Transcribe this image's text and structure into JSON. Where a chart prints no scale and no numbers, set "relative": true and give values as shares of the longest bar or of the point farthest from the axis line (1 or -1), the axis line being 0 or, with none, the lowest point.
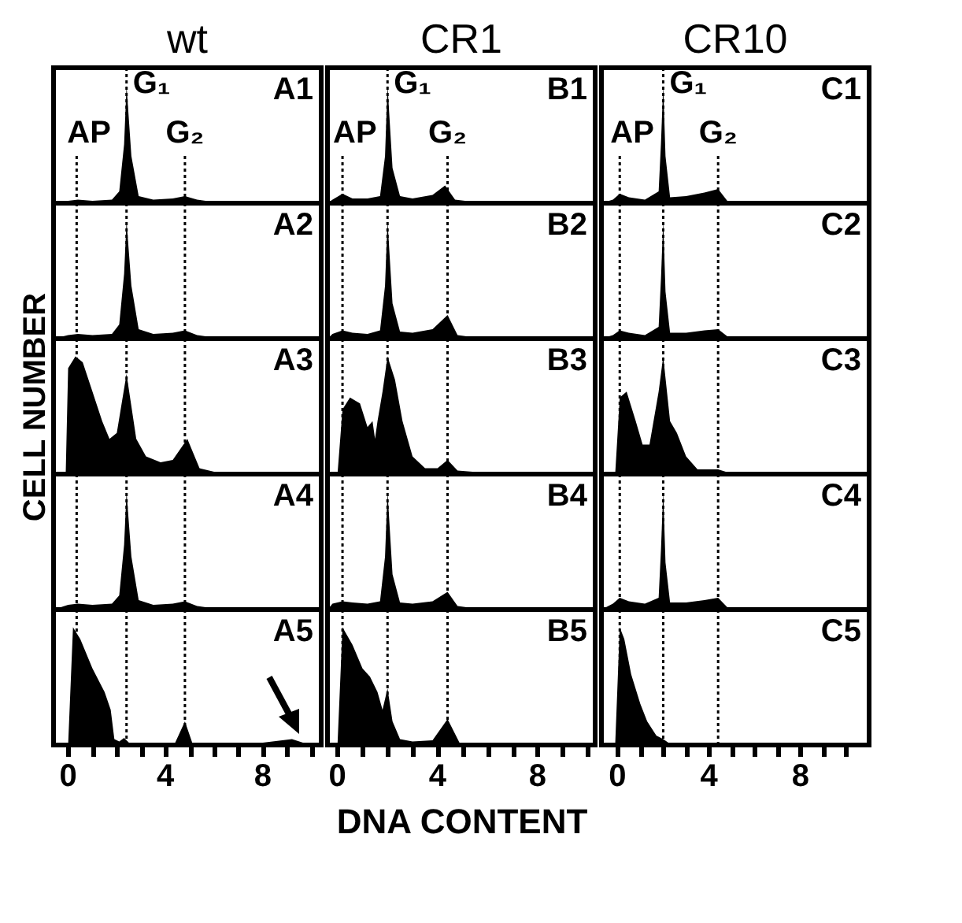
{
  "chart_data": [
    {
      "type": "area",
      "title": "wt",
      "relative": true,
      "color": "#000000",
      "xlim": [
        -0.6,
        10.4
      ],
      "tick_labels": false,
      "annotations": [
        "A1"
      ],
      "line_style": "dotted",
      "x": [
        -0.6,
        0,
        0.4,
        1,
        1.8,
        2.1,
        2.3,
        2.4,
        2.6,
        2.9,
        3.5,
        4.3,
        4.8,
        5.3,
        6,
        8,
        10,
        10.4
      ],
      "values": [
        0,
        0.02,
        0.03,
        0.02,
        0.03,
        0.1,
        0.5,
        1,
        0.4,
        0.06,
        0.03,
        0.04,
        0.06,
        0.03,
        0.01,
        0.01,
        0.01,
        0
      ],
      "ref_lines": [
        {
          "axis": "x",
          "value": 0.35,
          "label": "AP"
        },
        {
          "axis": "x",
          "value": 2.4,
          "label": "G₁"
        },
        {
          "axis": "x",
          "value": 4.8,
          "label": "G₂"
        }
      ]
    },
    {
      "type": "area",
      "title": "CR1",
      "relative": true,
      "color": "#000000",
      "xlim": [
        -0.4,
        10.3
      ],
      "tick_labels": false,
      "annotations": [
        "B1"
      ],
      "line_style": "dotted",
      "x": [
        -0.4,
        -0.2,
        0.2,
        0.6,
        1.2,
        1.7,
        1.9,
        2.0,
        2.2,
        2.5,
        3,
        3.8,
        4.3,
        4.7,
        5.5,
        7,
        10.3
      ],
      "values": [
        0,
        0.03,
        0.08,
        0.04,
        0.04,
        0.06,
        0.4,
        1,
        0.3,
        0.06,
        0.04,
        0.07,
        0.15,
        0.03,
        0.01,
        0.01,
        0
      ],
      "ref_lines": [
        {
          "axis": "x",
          "value": 0.2,
          "label": "AP"
        },
        {
          "axis": "x",
          "value": 2.0,
          "label": "G₁"
        },
        {
          "axis": "x",
          "value": 4.4,
          "label": "G₂"
        }
      ]
    },
    {
      "type": "area",
      "title": "CR10",
      "relative": true,
      "color": "#000000",
      "xlim": [
        -0.7,
        11
      ],
      "tick_labels": false,
      "annotations": [
        "C1"
      ],
      "line_style": "dotted",
      "x": [
        -0.7,
        -0.2,
        0.1,
        0.5,
        1.2,
        1.8,
        1.9,
        2.0,
        2.1,
        2.3,
        3,
        3.8,
        4.4,
        4.8,
        6,
        11
      ],
      "values": [
        0,
        0.03,
        0.08,
        0.05,
        0.03,
        0.1,
        0.5,
        1,
        0.4,
        0.05,
        0.06,
        0.09,
        0.12,
        0.02,
        0.01,
        0
      ],
      "ref_lines": [
        {
          "axis": "x",
          "value": 0.1,
          "label": "AP"
        },
        {
          "axis": "x",
          "value": 2.0,
          "label": "G₁"
        },
        {
          "axis": "x",
          "value": 4.4,
          "label": "G₂"
        }
      ]
    },
    {
      "type": "area",
      "relative": true,
      "color": "#000000",
      "xlim": [
        -0.6,
        10.4
      ],
      "tick_labels": false,
      "annotations": [
        "A2"
      ],
      "line_style": "dotted",
      "x": [
        -0.6,
        0,
        0.4,
        1,
        1.8,
        2.1,
        2.3,
        2.4,
        2.6,
        2.9,
        3.5,
        4.3,
        4.8,
        5.3,
        6,
        8,
        10,
        10.4
      ],
      "values": [
        0,
        0.03,
        0.04,
        0.03,
        0.04,
        0.12,
        0.55,
        1,
        0.45,
        0.08,
        0.04,
        0.05,
        0.07,
        0.03,
        0.01,
        0.01,
        0.01,
        0
      ],
      "ref_lines": [
        {
          "axis": "x",
          "value": 0.35
        },
        {
          "axis": "x",
          "value": 2.4
        },
        {
          "axis": "x",
          "value": 4.8
        }
      ]
    },
    {
      "type": "area",
      "relative": true,
      "color": "#000000",
      "xlim": [
        -0.4,
        10.3
      ],
      "tick_labels": false,
      "annotations": [
        "B2"
      ],
      "line_style": "dotted",
      "x": [
        -0.4,
        -0.2,
        0.2,
        0.6,
        1.2,
        1.7,
        1.9,
        2.0,
        2.2,
        2.5,
        3,
        3.8,
        4.4,
        4.8,
        5.5,
        7,
        10.3
      ],
      "values": [
        0,
        0.04,
        0.07,
        0.05,
        0.04,
        0.07,
        0.45,
        1,
        0.3,
        0.06,
        0.05,
        0.08,
        0.2,
        0.03,
        0.01,
        0.01,
        0
      ],
      "ref_lines": [
        {
          "axis": "x",
          "value": 0.2
        },
        {
          "axis": "x",
          "value": 2.0
        },
        {
          "axis": "x",
          "value": 4.4
        }
      ]
    },
    {
      "type": "area",
      "relative": true,
      "color": "#000000",
      "xlim": [
        -0.7,
        11
      ],
      "tick_labels": false,
      "annotations": [
        "C2"
      ],
      "line_style": "dotted",
      "x": [
        -0.7,
        -0.2,
        0.1,
        0.5,
        1.2,
        1.8,
        1.9,
        2.0,
        2.1,
        2.3,
        3,
        3.8,
        4.4,
        4.8,
        6,
        11
      ],
      "values": [
        0,
        0.03,
        0.07,
        0.05,
        0.03,
        0.1,
        0.5,
        1,
        0.4,
        0.05,
        0.05,
        0.07,
        0.08,
        0.02,
        0.01,
        0
      ],
      "ref_lines": [
        {
          "axis": "x",
          "value": 0.1
        },
        {
          "axis": "x",
          "value": 2.0
        },
        {
          "axis": "x",
          "value": 4.4
        }
      ]
    },
    {
      "type": "area",
      "relative": true,
      "color": "#000000",
      "xlim": [
        -0.6,
        10.4
      ],
      "tick_labels": false,
      "annotations": [
        "A3"
      ],
      "ylabel": "CELL NUMBER",
      "line_style": "dotted",
      "x": [
        -0.6,
        -0.1,
        0,
        0.3,
        0.6,
        1,
        1.4,
        1.7,
        2.0,
        2.4,
        2.8,
        3.2,
        3.8,
        4.3,
        4.9,
        5.4,
        6,
        8,
        10,
        10.4
      ],
      "values": [
        0,
        0,
        0.9,
        1,
        0.95,
        0.7,
        0.45,
        0.3,
        0.35,
        0.85,
        0.3,
        0.15,
        0.1,
        0.12,
        0.3,
        0.05,
        0.02,
        0.01,
        0.01,
        0
      ],
      "ref_lines": [
        {
          "axis": "x",
          "value": 0.35
        },
        {
          "axis": "x",
          "value": 2.4
        },
        {
          "axis": "x",
          "value": 4.8
        }
      ]
    },
    {
      "type": "area",
      "relative": true,
      "color": "#000000",
      "xlim": [
        -0.4,
        10.3
      ],
      "tick_labels": false,
      "annotations": [
        "B3"
      ],
      "line_style": "dotted",
      "x": [
        -0.4,
        0,
        0.2,
        0.5,
        0.9,
        1.2,
        1.4,
        1.5,
        1.6,
        1.8,
        2.0,
        2.3,
        2.6,
        3.0,
        3.5,
        4.0,
        4.4,
        4.8,
        6,
        10.3
      ],
      "values": [
        0,
        0,
        0.55,
        0.65,
        0.6,
        0.4,
        0.45,
        0.3,
        0.45,
        0.7,
        1,
        0.8,
        0.45,
        0.15,
        0.05,
        0.05,
        0.12,
        0.03,
        0.01,
        0
      ],
      "ref_lines": [
        {
          "axis": "x",
          "value": 0.2
        },
        {
          "axis": "x",
          "value": 2.0
        },
        {
          "axis": "x",
          "value": 4.4
        }
      ]
    },
    {
      "type": "area",
      "relative": true,
      "color": "#000000",
      "xlim": [
        -0.7,
        11
      ],
      "tick_labels": false,
      "annotations": [
        "C3"
      ],
      "line_style": "dotted",
      "x": [
        -0.7,
        -0.1,
        0.1,
        0.4,
        0.8,
        1.1,
        1.4,
        1.8,
        2.0,
        2.3,
        2.6,
        3.0,
        3.5,
        4.4,
        4.9,
        6,
        11
      ],
      "values": [
        0,
        0,
        0.65,
        0.7,
        0.45,
        0.25,
        0.25,
        0.7,
        1,
        0.45,
        0.35,
        0.15,
        0.04,
        0.04,
        0.01,
        0.01,
        0
      ],
      "ref_lines": [
        {
          "axis": "x",
          "value": 0.1
        },
        {
          "axis": "x",
          "value": 2.0
        },
        {
          "axis": "x",
          "value": 4.4
        }
      ]
    },
    {
      "type": "area",
      "relative": true,
      "color": "#000000",
      "xlim": [
        -0.6,
        10.4
      ],
      "tick_labels": false,
      "annotations": [
        "A4"
      ],
      "line_style": "dotted",
      "x": [
        -0.6,
        0,
        0.4,
        1,
        1.8,
        2.1,
        2.3,
        2.4,
        2.6,
        2.9,
        3.5,
        4.3,
        4.8,
        5.3,
        6,
        8,
        10,
        10.4
      ],
      "values": [
        0,
        0.04,
        0.05,
        0.04,
        0.05,
        0.12,
        0.55,
        1,
        0.45,
        0.08,
        0.04,
        0.05,
        0.07,
        0.03,
        0.01,
        0.01,
        0.01,
        0
      ],
      "ref_lines": [
        {
          "axis": "x",
          "value": 0.35
        },
        {
          "axis": "x",
          "value": 2.4
        },
        {
          "axis": "x",
          "value": 4.8
        }
      ]
    },
    {
      "type": "area",
      "relative": true,
      "color": "#000000",
      "xlim": [
        -0.4,
        10.3
      ],
      "tick_labels": false,
      "annotations": [
        "B4"
      ],
      "line_style": "dotted",
      "x": [
        -0.4,
        -0.2,
        0.2,
        0.6,
        1.2,
        1.7,
        1.9,
        2.0,
        2.2,
        2.5,
        3,
        3.8,
        4.4,
        4.8,
        5.5,
        7,
        10.3
      ],
      "values": [
        0,
        0.05,
        0.07,
        0.06,
        0.05,
        0.07,
        0.45,
        1,
        0.3,
        0.06,
        0.05,
        0.07,
        0.15,
        0.03,
        0.01,
        0.01,
        0
      ],
      "ref_lines": [
        {
          "axis": "x",
          "value": 0.2
        },
        {
          "axis": "x",
          "value": 2.0
        },
        {
          "axis": "x",
          "value": 4.4
        }
      ]
    },
    {
      "type": "area",
      "relative": true,
      "color": "#000000",
      "xlim": [
        -0.7,
        11
      ],
      "tick_labels": false,
      "annotations": [
        "C4"
      ],
      "line_style": "dotted",
      "x": [
        -0.7,
        -0.2,
        0.1,
        0.5,
        1.2,
        1.8,
        1.9,
        2.0,
        2.1,
        2.3,
        3,
        3.8,
        4.4,
        4.8,
        6,
        11
      ],
      "values": [
        0,
        0.05,
        0.1,
        0.07,
        0.05,
        0.1,
        0.5,
        1,
        0.4,
        0.06,
        0.06,
        0.08,
        0.1,
        0.02,
        0.01,
        0
      ],
      "ref_lines": [
        {
          "axis": "x",
          "value": 0.1
        },
        {
          "axis": "x",
          "value": 2.0
        },
        {
          "axis": "x",
          "value": 4.4
        }
      ]
    },
    {
      "type": "area",
      "relative": true,
      "color": "#000000",
      "xlim": [
        -0.6,
        10.4
      ],
      "tick_labels": "x",
      "annotations": [
        "A5"
      ],
      "line_style": "dotted",
      "xticks": [
        0,
        {
          "value": 1,
          "label": null
        },
        {
          "value": 2,
          "label": null
        },
        {
          "value": 3,
          "label": null
        },
        4,
        {
          "value": 5,
          "label": null
        },
        {
          "value": 6,
          "label": null
        },
        {
          "value": 7,
          "label": null
        },
        8,
        {
          "value": 9,
          "label": null
        },
        {
          "value": 10,
          "label": null
        }
      ],
      "x": [
        -0.6,
        0,
        0.2,
        0.5,
        1,
        1.5,
        1.75,
        1.9,
        2.1,
        2.3,
        2.5,
        3,
        4.4,
        4.8,
        5.1,
        6,
        8,
        9.2,
        9.8,
        10.4
      ],
      "values": [
        0,
        0,
        1,
        0.9,
        0.65,
        0.45,
        0.3,
        0.05,
        0.03,
        0.06,
        0.02,
        0.02,
        0.02,
        0.2,
        0.02,
        0.01,
        0.02,
        0.05,
        0.01,
        0
      ],
      "ref_lines": [
        {
          "axis": "x",
          "value": 0.35
        },
        {
          "axis": "x",
          "value": 2.4
        },
        {
          "axis": "x",
          "value": 4.8
        }
      ]
    },
    {
      "type": "area",
      "relative": true,
      "color": "#000000",
      "xlim": [
        -0.4,
        10.3
      ],
      "tick_labels": "x",
      "annotations": [
        "B5"
      ],
      "xlabel": "DNA CONTENT",
      "line_style": "dotted",
      "xticks": [
        0,
        {
          "value": 1,
          "label": null
        },
        {
          "value": 2,
          "label": null
        },
        {
          "value": 3,
          "label": null
        },
        4,
        {
          "value": 5,
          "label": null
        },
        {
          "value": 6,
          "label": null
        },
        {
          "value": 7,
          "label": null
        },
        8,
        {
          "value": 9,
          "label": null
        },
        {
          "value": 10,
          "label": null
        }
      ],
      "x": [
        -0.4,
        0,
        0.2,
        0.6,
        1.0,
        1.3,
        1.6,
        1.8,
        2.0,
        2.2,
        2.5,
        3,
        3.8,
        4.4,
        4.9,
        6,
        10.3
      ],
      "values": [
        0,
        0,
        1,
        0.85,
        0.65,
        0.58,
        0.45,
        0.3,
        0.48,
        0.2,
        0.05,
        0.03,
        0.04,
        0.22,
        0.01,
        0.01,
        0
      ],
      "ref_lines": [
        {
          "axis": "x",
          "value": 0.2
        },
        {
          "axis": "x",
          "value": 2.0
        },
        {
          "axis": "x",
          "value": 4.4
        }
      ]
    },
    {
      "type": "area",
      "relative": true,
      "color": "#000000",
      "xlim": [
        -0.7,
        11
      ],
      "tick_labels": "x",
      "annotations": [
        "C5"
      ],
      "line_style": "dotted",
      "xticks": [
        0,
        {
          "value": 1,
          "label": null
        },
        {
          "value": 2,
          "label": null
        },
        {
          "value": 3,
          "label": null
        },
        4,
        {
          "value": 5,
          "label": null
        },
        {
          "value": 6,
          "label": null
        },
        {
          "value": 7,
          "label": null
        },
        8,
        {
          "value": 9,
          "label": null
        },
        {
          "value": 10,
          "label": null
        }
      ],
      "x": [
        -0.7,
        -0.1,
        0.1,
        0.3,
        0.6,
        1.0,
        1.3,
        1.7,
        2.0,
        2.3,
        3,
        11
      ],
      "values": [
        0,
        0,
        1,
        0.9,
        0.6,
        0.35,
        0.2,
        0.08,
        0.05,
        0.01,
        0,
        0
      ],
      "ref_lines": [
        {
          "axis": "x",
          "value": 0.1
        },
        {
          "axis": "x",
          "value": 2.0
        },
        {
          "axis": "x",
          "value": 4.4
        }
      ]
    }
  ]
}
